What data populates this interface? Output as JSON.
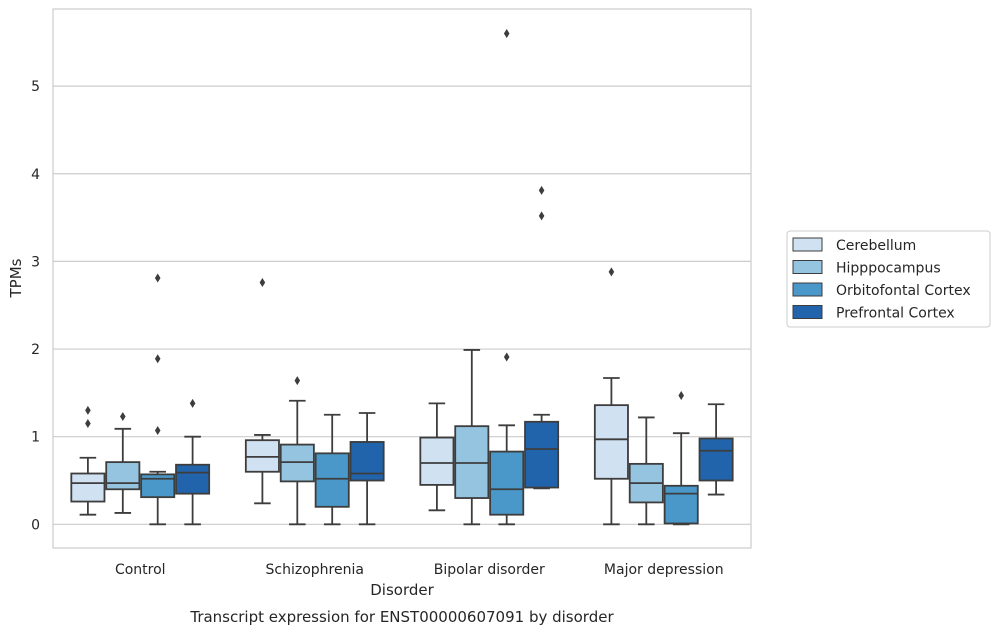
{
  "chart_data": {
    "type": "box",
    "title": "Transcript expression for ENST00000607091 by disorder",
    "xlabel": "Disorder",
    "ylabel": "TPMs",
    "ylim": [
      -0.27,
      5.88
    ],
    "yticks": [
      0,
      1,
      2,
      3,
      4,
      5
    ],
    "ytick_labels": [
      "0",
      "1",
      "2",
      "3",
      "4",
      "5"
    ],
    "grid": "horizontal",
    "legend_position": "right",
    "categories": [
      "Control",
      "Schizophrenia",
      "Bipolar disorder",
      "Major depression"
    ],
    "series": [
      {
        "name": "Cerebellum",
        "color": "#d0e1f2",
        "boxes": [
          {
            "whislo": 0.11,
            "q1": 0.26,
            "med": 0.47,
            "q3": 0.58,
            "whishi": 0.76,
            "fliers": [
              1.15,
              1.3
            ]
          },
          {
            "whislo": 0.24,
            "q1": 0.6,
            "med": 0.77,
            "q3": 0.96,
            "whishi": 1.02,
            "fliers": [
              2.76
            ]
          },
          {
            "whislo": 0.16,
            "q1": 0.45,
            "med": 0.7,
            "q3": 0.99,
            "whishi": 1.38,
            "fliers": []
          },
          {
            "whislo": 0.0,
            "q1": 0.52,
            "med": 0.97,
            "q3": 1.36,
            "whishi": 1.67,
            "fliers": [
              2.88
            ]
          }
        ]
      },
      {
        "name": "Hipppocampus",
        "color": "#94c4df",
        "boxes": [
          {
            "whislo": 0.13,
            "q1": 0.4,
            "med": 0.47,
            "q3": 0.71,
            "whishi": 1.09,
            "fliers": [
              1.23
            ]
          },
          {
            "whislo": 0.0,
            "q1": 0.49,
            "med": 0.71,
            "q3": 0.91,
            "whishi": 1.41,
            "fliers": [
              1.64
            ]
          },
          {
            "whislo": 0.0,
            "q1": 0.3,
            "med": 0.7,
            "q3": 1.12,
            "whishi": 1.99,
            "fliers": []
          },
          {
            "whislo": 0.0,
            "q1": 0.25,
            "med": 0.47,
            "q3": 0.69,
            "whishi": 1.22,
            "fliers": []
          }
        ]
      },
      {
        "name": "Orbitofontal Cortex",
        "color": "#4a98c9",
        "boxes": [
          {
            "whislo": 0.0,
            "q1": 0.31,
            "med": 0.52,
            "q3": 0.57,
            "whishi": 0.6,
            "fliers": [
              1.07,
              1.89,
              2.81
            ]
          },
          {
            "whislo": 0.0,
            "q1": 0.2,
            "med": 0.52,
            "q3": 0.81,
            "whishi": 1.25,
            "fliers": []
          },
          {
            "whislo": 0.0,
            "q1": 0.11,
            "med": 0.4,
            "q3": 0.83,
            "whishi": 1.13,
            "fliers": [
              1.91,
              5.6
            ]
          },
          {
            "whislo": 0.0,
            "q1": 0.01,
            "med": 0.35,
            "q3": 0.44,
            "whishi": 1.04,
            "fliers": [
              1.47
            ]
          }
        ]
      },
      {
        "name": "Prefrontal Cortex",
        "color": "#2164ab",
        "boxes": [
          {
            "whislo": 0.0,
            "q1": 0.35,
            "med": 0.59,
            "q3": 0.68,
            "whishi": 1.0,
            "fliers": [
              1.38
            ]
          },
          {
            "whislo": 0.0,
            "q1": 0.5,
            "med": 0.58,
            "q3": 0.94,
            "whishi": 1.27,
            "fliers": []
          },
          {
            "whislo": 0.41,
            "q1": 0.42,
            "med": 0.86,
            "q3": 1.17,
            "whishi": 1.25,
            "fliers": [
              3.52,
              3.81
            ]
          },
          {
            "whislo": 0.34,
            "q1": 0.5,
            "med": 0.84,
            "q3": 0.98,
            "whishi": 1.37,
            "fliers": []
          }
        ]
      }
    ]
  }
}
